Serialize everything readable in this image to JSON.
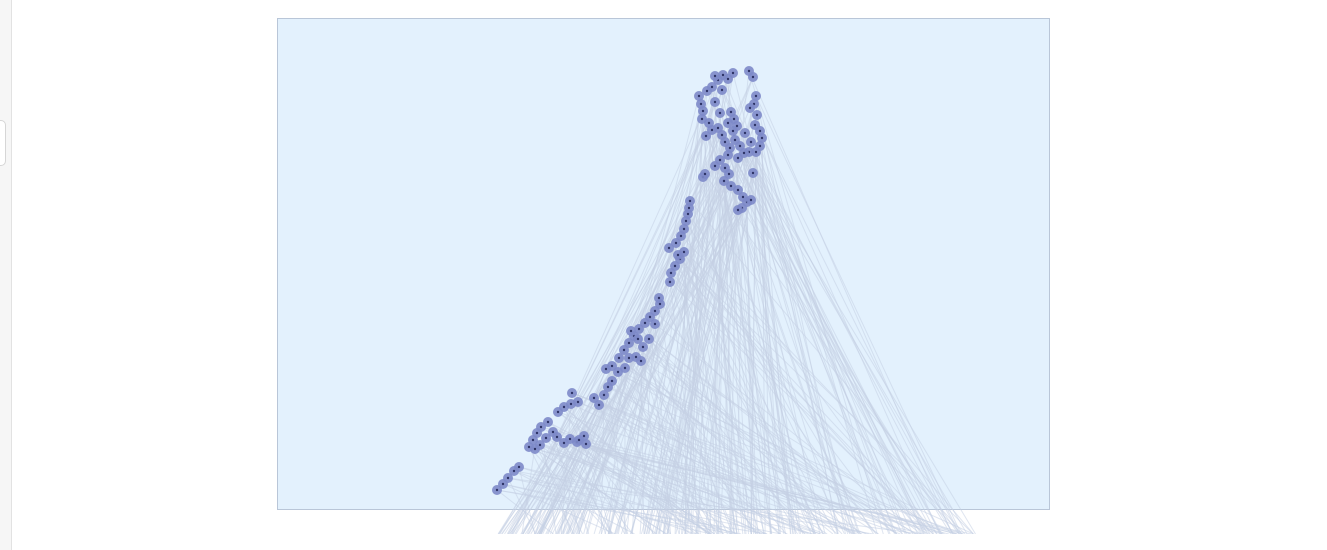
{
  "palette": {
    "map_background": "#e3f1fd",
    "map_border": "#b9c6d8",
    "flow_line": "#c4cfe3",
    "site_marker": "#7d89c9",
    "site_center": "#2e3466"
  },
  "map": {
    "layers": [
      "flow-lines",
      "site-markers"
    ]
  }
}
